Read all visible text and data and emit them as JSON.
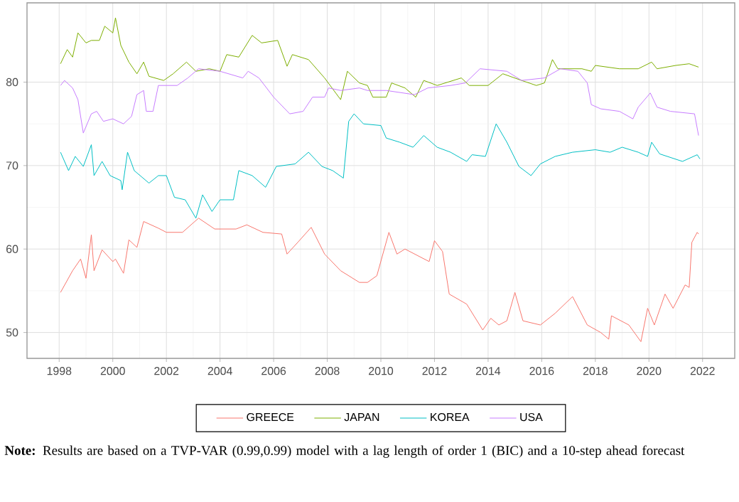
{
  "chart_data": {
    "type": "line",
    "xlim": [
      1996.8,
      2023.2
    ],
    "ylim": [
      46.9,
      89.5
    ],
    "xticks": [
      1998,
      2000,
      2002,
      2004,
      2006,
      2008,
      2010,
      2012,
      2014,
      2016,
      2018,
      2020,
      2022
    ],
    "yticks": [
      50,
      60,
      70,
      80
    ],
    "grid": true,
    "legend": "bottom",
    "annotations": [
      "**Note:** Results are based on a TVP-VAR (0.99,0.99) model with a lag length of order 1 (BIC) and a 10-step ahead forecast"
    ],
    "series": [
      {
        "name": "GREECE",
        "color": "#F8766D",
        "x": [
          1998.05,
          1998.5,
          1998.8,
          1999.0,
          1999.2,
          1999.3,
          1999.6,
          2000.0,
          2000.1,
          2000.4,
          2000.6,
          2000.9,
          2001.15,
          2001.7,
          2002.0,
          2002.6,
          2003.2,
          2003.8,
          2004.6,
          2005.0,
          2005.6,
          2006.3,
          2006.5,
          2006.9,
          2007.4,
          2007.9,
          2008.5,
          2009.2,
          2009.5,
          2009.85,
          2010.3,
          2010.6,
          2010.9,
          2011.8,
          2012.0,
          2012.3,
          2012.55,
          2013.2,
          2013.8,
          2014.1,
          2014.4,
          2014.7,
          2015.0,
          2015.3,
          2015.95,
          2016.5,
          2017.15,
          2017.7,
          2018.2,
          2018.5,
          2018.6,
          2019.25,
          2019.7,
          2019.95,
          2020.2,
          2020.6,
          2020.9,
          2021.35,
          2021.5,
          2021.6,
          2021.8,
          2021.85
        ],
        "values": [
          54.8,
          57.4,
          58.8,
          56.5,
          61.7,
          57.4,
          59.9,
          58.5,
          58.8,
          57.1,
          61.1,
          60.2,
          63.3,
          62.5,
          62.0,
          62.0,
          63.7,
          62.4,
          62.4,
          62.9,
          62.0,
          61.8,
          59.4,
          60.8,
          62.6,
          59.4,
          57.4,
          56.0,
          56.0,
          56.8,
          62.0,
          59.4,
          60.0,
          58.5,
          61.0,
          59.7,
          54.6,
          53.4,
          50.3,
          51.7,
          50.9,
          51.4,
          54.8,
          51.4,
          50.9,
          52.3,
          54.3,
          50.9,
          50.0,
          49.2,
          52.0,
          50.9,
          48.9,
          52.9,
          50.9,
          54.6,
          52.9,
          55.7,
          55.4,
          60.8,
          62.0,
          61.8
        ]
      },
      {
        "name": "JAPAN",
        "color": "#7CAE00",
        "x": [
          1998.05,
          1998.3,
          1998.5,
          1998.7,
          1999.0,
          1999.2,
          1999.5,
          1999.7,
          2000.0,
          2000.1,
          2000.3,
          2000.6,
          2000.9,
          2001.15,
          2001.35,
          2001.9,
          2002.25,
          2002.75,
          2003.1,
          2003.6,
          2004.0,
          2004.25,
          2004.7,
          2005.2,
          2005.55,
          2006.15,
          2006.5,
          2006.7,
          2007.3,
          2007.9,
          2008.5,
          2008.75,
          2009.2,
          2009.5,
          2009.7,
          2010.2,
          2010.4,
          2010.9,
          2011.3,
          2011.6,
          2012.1,
          2013.0,
          2013.3,
          2014.0,
          2014.55,
          2015.25,
          2015.8,
          2016.1,
          2016.4,
          2016.6,
          2017.5,
          2017.85,
          2018.0,
          2018.9,
          2019.6,
          2020.1,
          2020.3,
          2021.0,
          2021.5,
          2021.85
        ],
        "values": [
          82.2,
          83.9,
          83.0,
          85.9,
          84.7,
          85.0,
          85.0,
          86.7,
          85.9,
          87.7,
          84.4,
          82.4,
          81.0,
          82.4,
          80.7,
          80.2,
          81.0,
          82.4,
          81.3,
          81.6,
          81.3,
          83.3,
          83.0,
          85.6,
          84.7,
          85.0,
          81.9,
          83.3,
          82.7,
          80.5,
          77.9,
          81.3,
          79.9,
          79.6,
          78.2,
          78.2,
          79.9,
          79.3,
          78.2,
          80.2,
          79.6,
          80.5,
          79.6,
          79.6,
          81.0,
          80.2,
          79.6,
          79.9,
          82.7,
          81.6,
          81.6,
          81.3,
          82.0,
          81.6,
          81.6,
          82.4,
          81.6,
          82.0,
          82.2,
          81.8
        ]
      },
      {
        "name": "KOREA",
        "color": "#00BFC4",
        "x": [
          1998.05,
          1998.35,
          1998.6,
          1998.9,
          1999.2,
          1999.3,
          1999.6,
          1999.9,
          2000.3,
          2000.35,
          2000.55,
          2000.8,
          2001.35,
          2001.7,
          2002.0,
          2002.3,
          2002.7,
          2003.1,
          2003.35,
          2003.7,
          2004.0,
          2004.5,
          2004.7,
          2005.2,
          2005.7,
          2006.1,
          2006.8,
          2007.3,
          2007.8,
          2008.2,
          2008.6,
          2008.8,
          2009.0,
          2009.35,
          2010.0,
          2010.2,
          2010.7,
          2011.2,
          2011.6,
          2012.1,
          2012.6,
          2013.2,
          2013.4,
          2013.9,
          2014.3,
          2014.7,
          2015.15,
          2015.6,
          2015.95,
          2016.5,
          2017.15,
          2018.0,
          2018.55,
          2019.0,
          2019.6,
          2019.95,
          2020.1,
          2020.4,
          2021.25,
          2021.8,
          2021.9
        ],
        "values": [
          71.6,
          69.4,
          71.1,
          69.9,
          72.5,
          68.8,
          70.5,
          68.8,
          68.2,
          67.1,
          71.6,
          69.4,
          67.9,
          68.8,
          68.8,
          66.2,
          65.9,
          63.7,
          66.5,
          64.5,
          65.9,
          65.9,
          69.4,
          68.8,
          67.4,
          69.9,
          70.2,
          71.6,
          69.9,
          69.4,
          68.5,
          75.3,
          76.2,
          75.0,
          74.8,
          73.3,
          72.8,
          72.2,
          73.6,
          72.2,
          71.6,
          70.5,
          71.3,
          71.1,
          75.0,
          72.8,
          69.9,
          68.8,
          70.2,
          71.1,
          71.6,
          71.9,
          71.6,
          72.2,
          71.6,
          71.1,
          72.8,
          71.4,
          70.5,
          71.3,
          70.8
        ]
      },
      {
        "name": "USA",
        "color": "#C77CFF",
        "x": [
          1998.05,
          1998.2,
          1998.5,
          1998.7,
          1998.9,
          1999.2,
          1999.4,
          1999.65,
          2000.0,
          2000.4,
          2000.7,
          2000.9,
          2001.15,
          2001.25,
          2001.5,
          2001.7,
          2002.4,
          2002.8,
          2003.2,
          2004.0,
          2004.85,
          2005.05,
          2005.45,
          2006.0,
          2006.6,
          2007.1,
          2007.45,
          2007.9,
          2008.05,
          2008.5,
          2009.2,
          2009.5,
          2010.2,
          2011.25,
          2011.75,
          2012.6,
          2013.15,
          2013.7,
          2014.7,
          2015.25,
          2016.1,
          2016.7,
          2017.35,
          2017.7,
          2017.85,
          2018.2,
          2018.9,
          2019.4,
          2019.6,
          2020.05,
          2020.3,
          2020.8,
          2021.7,
          2021.85
        ],
        "values": [
          79.6,
          80.2,
          79.3,
          77.9,
          73.9,
          76.2,
          76.5,
          75.3,
          75.6,
          75.0,
          75.9,
          78.5,
          79.0,
          76.5,
          76.5,
          79.6,
          79.6,
          80.5,
          81.6,
          81.3,
          80.5,
          81.3,
          80.5,
          78.2,
          76.2,
          76.5,
          78.2,
          78.2,
          79.3,
          79.0,
          79.3,
          79.0,
          79.0,
          78.5,
          79.3,
          79.6,
          79.9,
          81.6,
          81.3,
          80.2,
          80.5,
          81.6,
          81.3,
          79.9,
          77.3,
          76.8,
          76.5,
          75.6,
          77.0,
          78.7,
          77.0,
          76.5,
          76.2,
          73.6
        ]
      }
    ]
  }
}
